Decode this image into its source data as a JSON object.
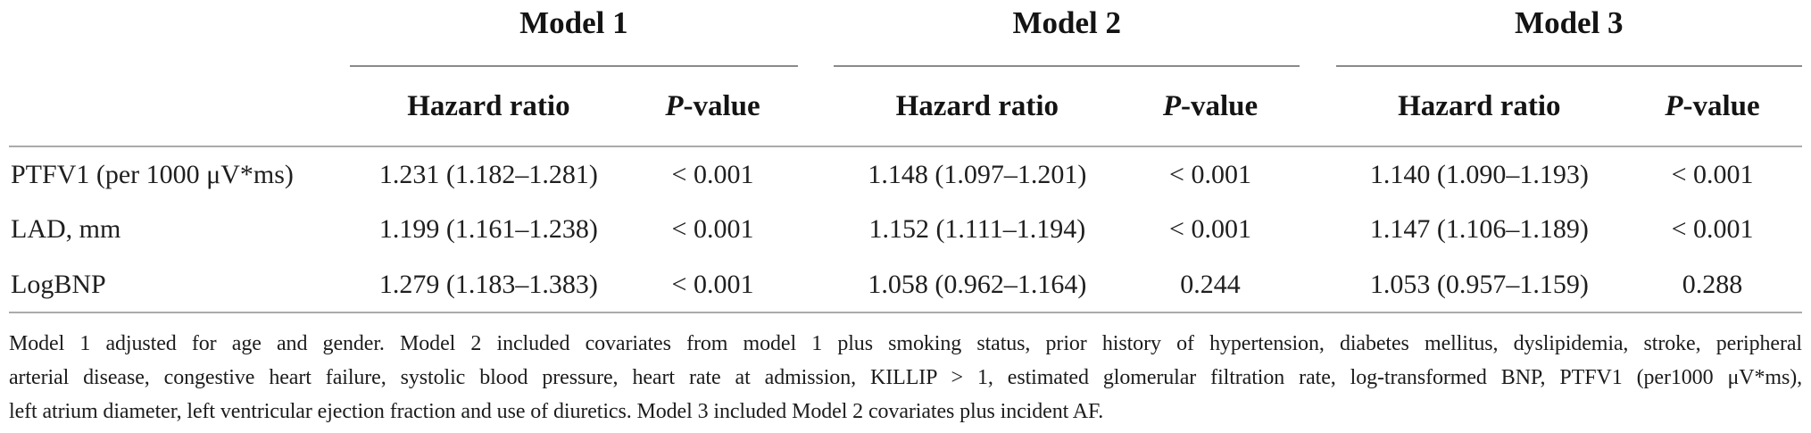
{
  "colors": {
    "text": "#1f1f1f",
    "rule_group": "#8a8a8a",
    "rule_full": "#ababab"
  },
  "table": {
    "groups": [
      {
        "label": "Model 1"
      },
      {
        "label": "Model 2"
      },
      {
        "label": "Model 3"
      }
    ],
    "col_headers": {
      "hazard": "Hazard ratio",
      "p_italic": "P",
      "p_rest": "-value"
    },
    "rows": [
      {
        "label": "PTFV1 (per 1000 μV*ms)",
        "cells": [
          {
            "hr": "1.231 (1.182–1.281)",
            "p": "< 0.001"
          },
          {
            "hr": "1.148 (1.097–1.201)",
            "p": "< 0.001"
          },
          {
            "hr": "1.140 (1.090–1.193)",
            "p": "< 0.001"
          }
        ]
      },
      {
        "label": "LAD, mm",
        "cells": [
          {
            "hr": "1.199 (1.161–1.238)",
            "p": "< 0.001"
          },
          {
            "hr": "1.152 (1.111–1.194)",
            "p": "< 0.001"
          },
          {
            "hr": "1.147 (1.106–1.189)",
            "p": "< 0.001"
          }
        ]
      },
      {
        "label": "LogBNP",
        "cells": [
          {
            "hr": "1.279 (1.183–1.383)",
            "p": "< 0.001"
          },
          {
            "hr": "1.058 (0.962–1.164)",
            "p": "0.244"
          },
          {
            "hr": "1.053 (0.957–1.159)",
            "p": "0.288"
          }
        ]
      }
    ]
  },
  "footnote": {
    "lines": [
      "Model 1 adjusted for age and gender. Model 2 included covariates from model 1 plus smoking status, prior history of hypertension, diabetes mellitus, dyslipidemia, stroke, peripheral",
      "arterial disease, congestive heart failure, systolic blood pressure, heart rate at admission, KILLIP > 1, estimated glomerular filtration rate, log-transformed BNP, PTFV1 (per1000 μV*ms),",
      "left atrium diameter, left ventricular ejection fraction and use of diuretics. Model 3 included Model 2 covariates plus incident AF."
    ]
  }
}
